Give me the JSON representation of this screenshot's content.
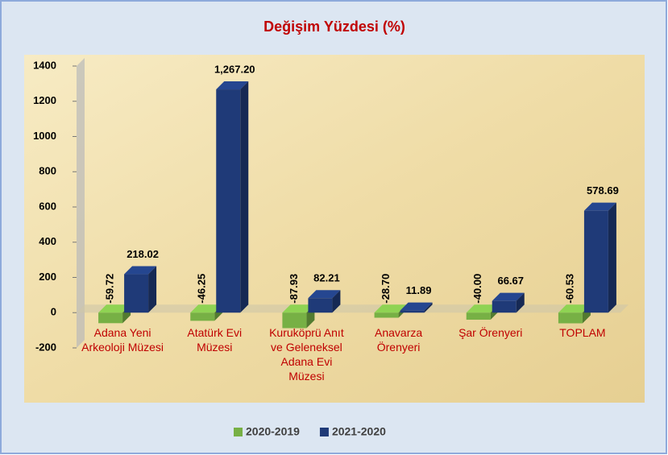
{
  "chart_data": {
    "type": "bar3d",
    "title": "Değişim Yüzdesi (%)",
    "categories": [
      "Adana Yeni Arkeoloji Müzesi",
      "Atatürk Evi Müzesi",
      "Kuruköprü Anıt ve Geleneksel Adana Evi Müzesi",
      "Anavarza Örenyeri",
      "Şar Örenyeri",
      "TOPLAM"
    ],
    "series": [
      {
        "name": "2020-2019",
        "color": "#77b045",
        "values": [
          -59.72,
          -46.25,
          -87.93,
          -28.7,
          -40,
          -60.53
        ],
        "value_labels": [
          "-59.72",
          "-46.25",
          "-87.93",
          "-28.70",
          "-40.00",
          "-60.53"
        ]
      },
      {
        "name": "2021-2020",
        "color": "#1f3a78",
        "values": [
          218.02,
          1267.2,
          82.21,
          11.89,
          66.67,
          578.69
        ],
        "value_labels": [
          "218.02",
          "1,267.20",
          "82.21",
          "11.89",
          "66.67",
          "578.69"
        ]
      }
    ],
    "ylim": [
      -200,
      1400
    ],
    "yticks": [
      -200,
      0,
      200,
      400,
      600,
      800,
      1000,
      1200,
      1400
    ],
    "legend": "bottom"
  }
}
